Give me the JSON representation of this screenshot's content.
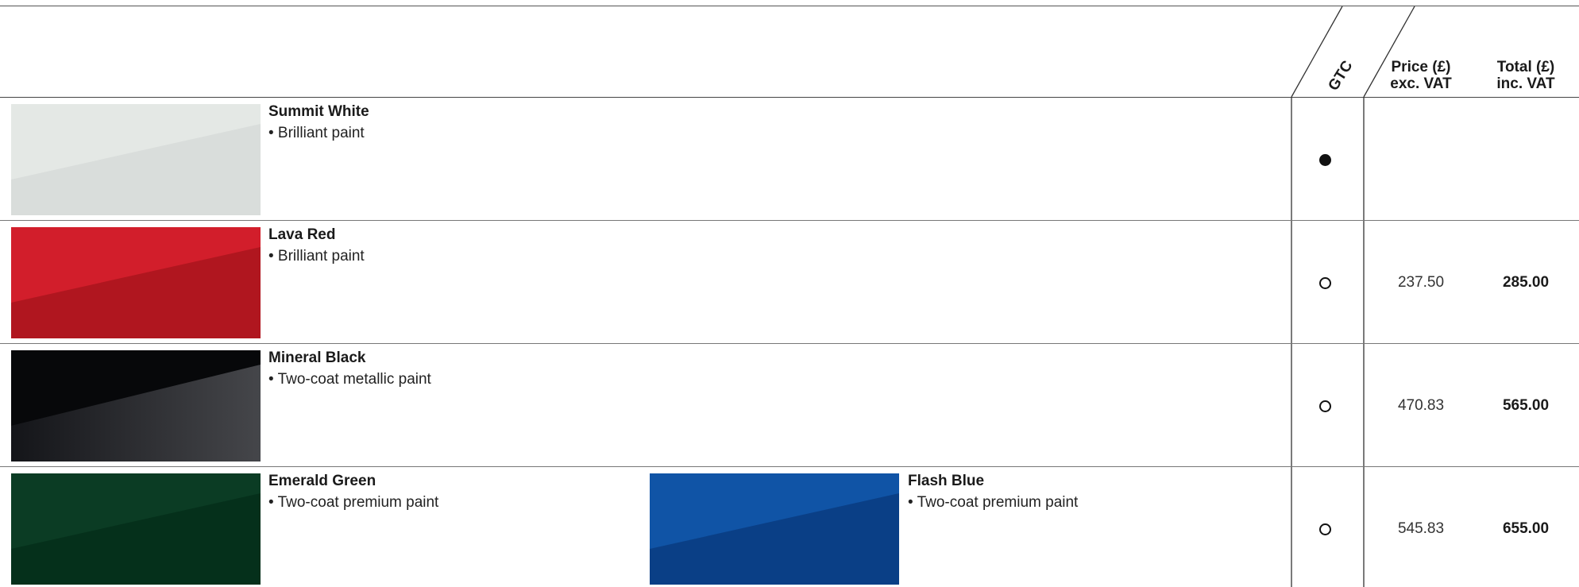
{
  "header": {
    "gtc_label": "GTC",
    "price_label_line1": "Price (£)",
    "price_label_line2": "exc. VAT",
    "total_label_line1": "Total (£)",
    "total_label_line2": "inc. VAT"
  },
  "legend": {
    "standard_mark": "filled-circle",
    "option_mark": "open-circle"
  },
  "rows": [
    {
      "colours": [
        {
          "name": "Summit White",
          "description": "• Brilliant paint",
          "swatch_top": "#e3e7e4",
          "swatch_bottom": "#d7dbd8"
        }
      ],
      "gtc": "standard",
      "price": "",
      "total": ""
    },
    {
      "colours": [
        {
          "name": "Lava Red",
          "description": "• Brilliant paint",
          "swatch_top": "#d21e2b",
          "swatch_bottom": "#a91522"
        }
      ],
      "gtc": "option",
      "price": "237.50",
      "total": "285.00"
    },
    {
      "colours": [
        {
          "name": "Mineral Black",
          "description": "• Two-coat metallic paint",
          "swatch_top": "#08090b",
          "swatch_bottom": "#3e3f43"
        }
      ],
      "gtc": "option",
      "price": "470.83",
      "total": "565.00"
    },
    {
      "colours": [
        {
          "name": "Emerald Green",
          "description": "• Two-coat premium paint",
          "swatch_top": "#0a3a22",
          "swatch_bottom": "#05301b"
        },
        {
          "name": "Flash Blue",
          "description": "• Two-coat premium paint",
          "swatch_top": "#0f52a3",
          "swatch_bottom": "#0a3f86"
        }
      ],
      "gtc": "option",
      "price": "545.83",
      "total": "655.00"
    }
  ]
}
